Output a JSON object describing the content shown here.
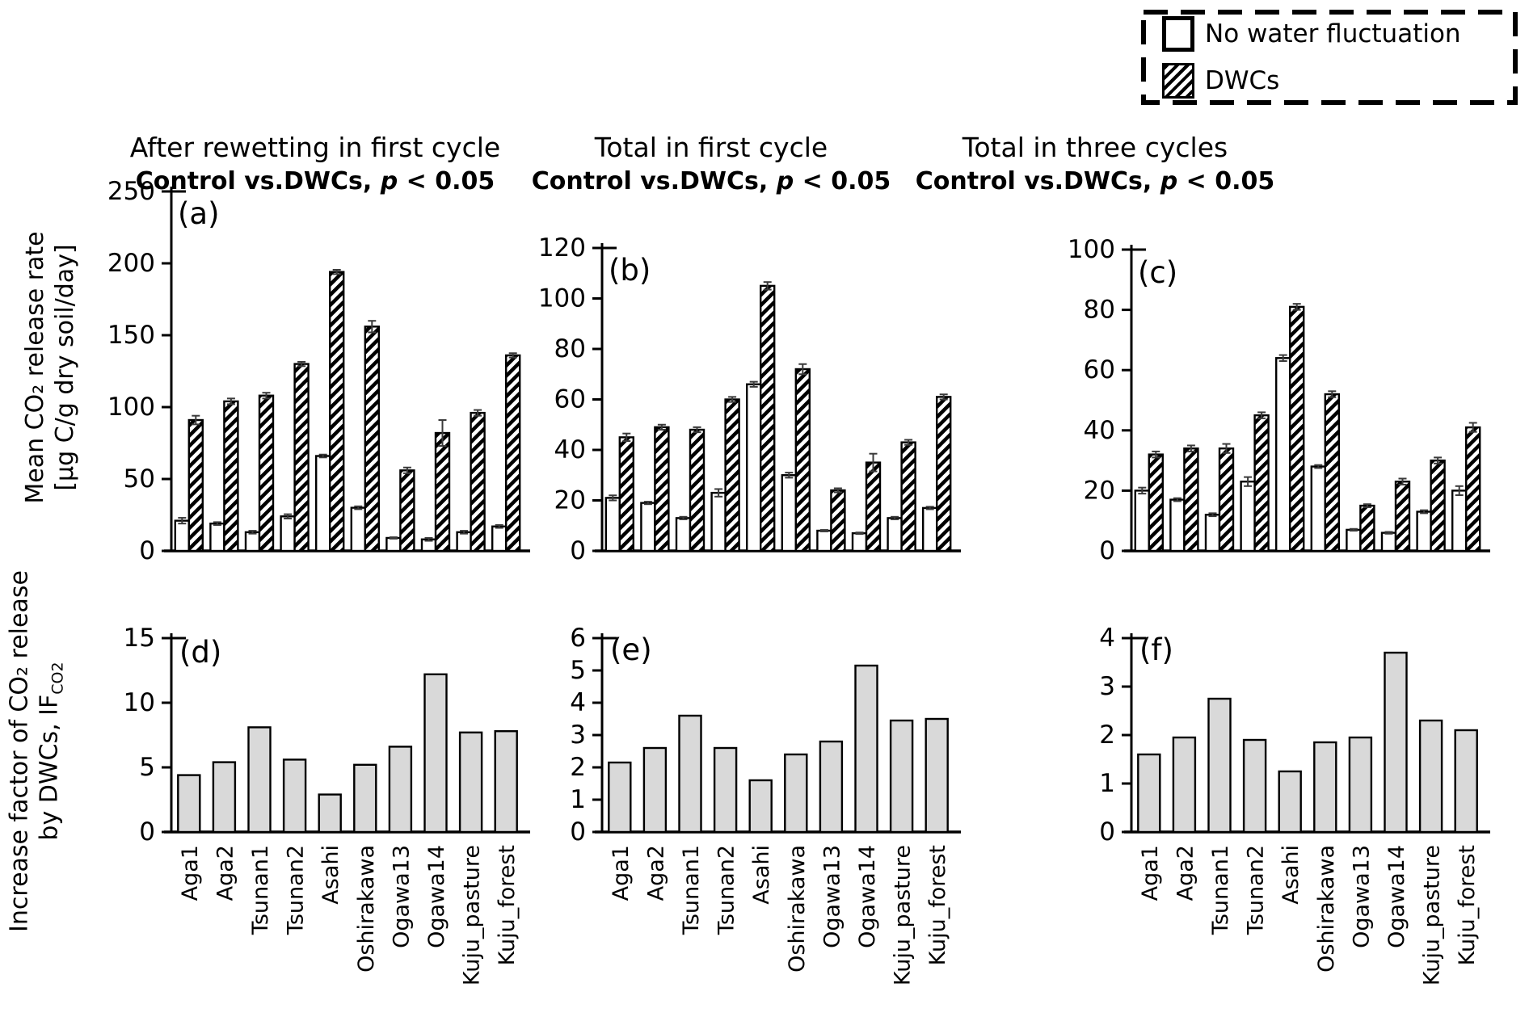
{
  "legend": {
    "items": [
      {
        "label": "No water fluctuation",
        "swatch": "white"
      },
      {
        "label": "DWCs",
        "swatch": "hatch"
      }
    ]
  },
  "columns": [
    {
      "title": "After rewetting in first cycle",
      "subtitle_prefix": "Control vs.DWCs, ",
      "subtitle_p": "p",
      "subtitle_rest": " < 0.05"
    },
    {
      "title": "Total in first cycle",
      "subtitle_prefix": "Control vs.DWCs, ",
      "subtitle_p": "p",
      "subtitle_rest": " < 0.05"
    },
    {
      "title": "Total in three cycles",
      "subtitle_prefix": "Control vs.DWCs, ",
      "subtitle_p": "p",
      "subtitle_rest": " < 0.05"
    }
  ],
  "ylabels": {
    "top_line1": "Mean CO₂ release rate",
    "top_line2": "[μg C/g dry soil/day]",
    "bottom_line1": "Increase factor of CO₂ release",
    "bottom_line2_prefix": "by DWCs, IF",
    "bottom_line2_sub": "CO2"
  },
  "categories": [
    "Aga1",
    "Aga2",
    "Tsunan1",
    "Tsunan2",
    "Asahi",
    "Oshirakawa",
    "Ogawa13",
    "Ogawa14",
    "Kuju_pasture",
    "Kuju_forest"
  ],
  "chart_data": [
    {
      "id": "a",
      "panel_label": "(a)",
      "type": "bar",
      "title": "After rewetting in first cycle",
      "ylabel": "Mean CO2 release rate [ug C/g dry soil/day]",
      "ylim": [
        0,
        250
      ],
      "ytick_step": 50,
      "series": [
        {
          "name": "No water fluctuation",
          "style": "white",
          "values": [
            21,
            19,
            13,
            24,
            66,
            30,
            9,
            8,
            13,
            17
          ],
          "errors": [
            2,
            1,
            1,
            1.5,
            1,
            1,
            0.5,
            1,
            1,
            1
          ]
        },
        {
          "name": "DWCs",
          "style": "hatch",
          "values": [
            91,
            104,
            108,
            130,
            194,
            156,
            56,
            82,
            96,
            136
          ],
          "errors": [
            3,
            2,
            2,
            1.5,
            1.5,
            4,
            2,
            9,
            2,
            1.5
          ]
        }
      ]
    },
    {
      "id": "b",
      "panel_label": "(b)",
      "type": "bar",
      "title": "Total in first cycle",
      "ylabel": "Mean CO2 release rate [ug C/g dry soil/day]",
      "ylim": [
        0,
        120
      ],
      "ytick_step": 20,
      "series": [
        {
          "name": "No water fluctuation",
          "style": "white",
          "values": [
            21,
            19,
            13,
            23,
            66,
            30,
            8,
            7,
            13,
            17
          ],
          "errors": [
            1,
            0.5,
            0.5,
            1.5,
            1,
            1,
            0.3,
            0.3,
            0.5,
            0.5
          ]
        },
        {
          "name": "DWCs",
          "style": "hatch",
          "values": [
            45,
            49,
            48,
            60,
            105,
            72,
            24,
            35,
            43,
            61
          ],
          "errors": [
            1.5,
            1,
            1,
            1,
            1.5,
            2,
            0.8,
            3.5,
            1,
            1
          ]
        }
      ]
    },
    {
      "id": "c",
      "panel_label": "(c)",
      "type": "bar",
      "title": "Total in three cycles",
      "ylabel": "Mean CO2 release rate [ug C/g dry soil/day]",
      "ylim": [
        0,
        100
      ],
      "ytick_step": 20,
      "series": [
        {
          "name": "No water fluctuation",
          "style": "white",
          "values": [
            20,
            17,
            12,
            23,
            64,
            28,
            7,
            6,
            13,
            20
          ],
          "errors": [
            1,
            0.5,
            0.5,
            1.5,
            1,
            0.5,
            0.3,
            0.3,
            0.5,
            1.5
          ]
        },
        {
          "name": "DWCs",
          "style": "hatch",
          "values": [
            32,
            34,
            34,
            45,
            81,
            52,
            15,
            23,
            30,
            41
          ],
          "errors": [
            1,
            1,
            1.5,
            1,
            1,
            1,
            0.5,
            1,
            1,
            1.5
          ]
        }
      ]
    },
    {
      "id": "d",
      "panel_label": "(d)",
      "type": "bar",
      "title": "After rewetting in first cycle",
      "ylabel": "Increase factor of CO2 release by DWCs, IF_CO2",
      "ylim": [
        0,
        15
      ],
      "ytick_step": 5,
      "series": [
        {
          "name": "IF_CO2",
          "style": "gray",
          "values": [
            4.4,
            5.4,
            8.1,
            5.6,
            2.9,
            5.2,
            6.6,
            12.2,
            7.7,
            7.8
          ]
        }
      ]
    },
    {
      "id": "e",
      "panel_label": "(e)",
      "type": "bar",
      "title": "Total in first cycle",
      "ylabel": "Increase factor of CO2 release by DWCs, IF_CO2",
      "ylim": [
        0,
        6
      ],
      "ytick_step": 1,
      "series": [
        {
          "name": "IF_CO2",
          "style": "gray",
          "values": [
            2.15,
            2.6,
            3.6,
            2.6,
            1.6,
            2.4,
            2.8,
            5.15,
            3.45,
            3.5
          ]
        }
      ]
    },
    {
      "id": "f",
      "panel_label": "(f)",
      "type": "bar",
      "title": "Total in three cycles",
      "ylabel": "Increase factor of CO2 release by DWCs, IF_CO2",
      "ylim": [
        0,
        4
      ],
      "ytick_step": 1,
      "series": [
        {
          "name": "IF_CO2",
          "style": "gray",
          "values": [
            1.6,
            1.95,
            2.75,
            1.9,
            1.25,
            1.85,
            1.95,
            3.7,
            2.3,
            2.1
          ]
        }
      ]
    }
  ]
}
